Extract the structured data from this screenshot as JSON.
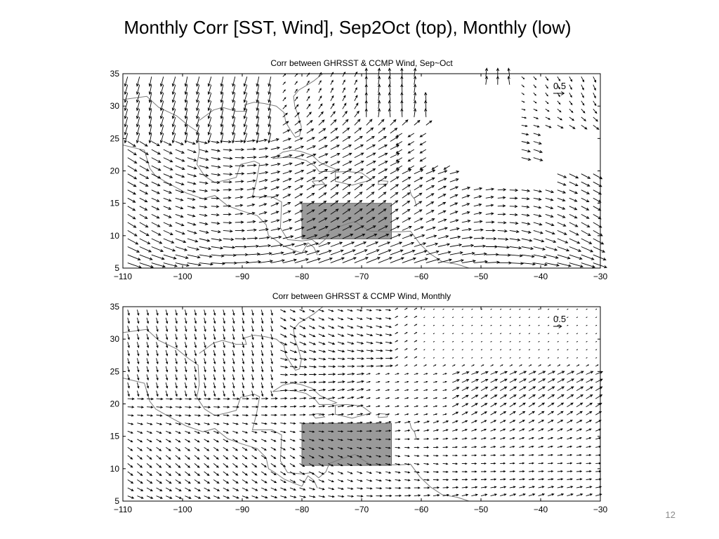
{
  "slide": {
    "title": "Monthly Corr  [SST, Wind], Sep2Oct (top), Monthly (low)",
    "page_number": "12"
  },
  "chart_data": [
    {
      "type": "quiver",
      "title": "Corr between GHRSST & CCMP Wind, Sep~Oct",
      "xlabel": "",
      "ylabel": "",
      "xlim": [
        -110,
        -30
      ],
      "ylim": [
        5,
        35
      ],
      "xticks": [
        -110,
        -100,
        -90,
        -80,
        -70,
        -60,
        -50,
        -40,
        -30
      ],
      "yticks": [
        5,
        10,
        15,
        20,
        25,
        30,
        35
      ],
      "xtick_labels": [
        "−110",
        "−100",
        "−90",
        "−80",
        "−70",
        "−60",
        "−50",
        "−40",
        "−30"
      ],
      "ytick_labels": [
        "5",
        "10",
        "15",
        "20",
        "25",
        "30",
        "35"
      ],
      "reference_vector": {
        "label": "0.5",
        "value": 0.5
      },
      "highlight_box": {
        "lon": [
          -80,
          -65
        ],
        "lat": [
          9.5,
          15
        ]
      },
      "coastline": "Gulf of Mexico / Caribbean",
      "grid": false
    },
    {
      "type": "quiver",
      "title": "Corr between GHRSST & CCMP Wind, Monthly",
      "xlabel": "",
      "ylabel": "",
      "xlim": [
        -110,
        -30
      ],
      "ylim": [
        5,
        35
      ],
      "xticks": [
        -110,
        -100,
        -90,
        -80,
        -70,
        -60,
        -50,
        -40,
        -30
      ],
      "yticks": [
        5,
        10,
        15,
        20,
        25,
        30,
        35
      ],
      "xtick_labels": [
        "−110",
        "−100",
        "−90",
        "−80",
        "−70",
        "−60",
        "−50",
        "−40",
        "−30"
      ],
      "ytick_labels": [
        "5",
        "10",
        "15",
        "20",
        "25",
        "30",
        "35"
      ],
      "reference_vector": {
        "label": "0.5",
        "value": 0.5
      },
      "highlight_box": {
        "lon": [
          -80,
          -65
        ],
        "lat": [
          10.5,
          17
        ]
      },
      "coastline": "Gulf of Mexico / Caribbean",
      "grid": false
    }
  ]
}
